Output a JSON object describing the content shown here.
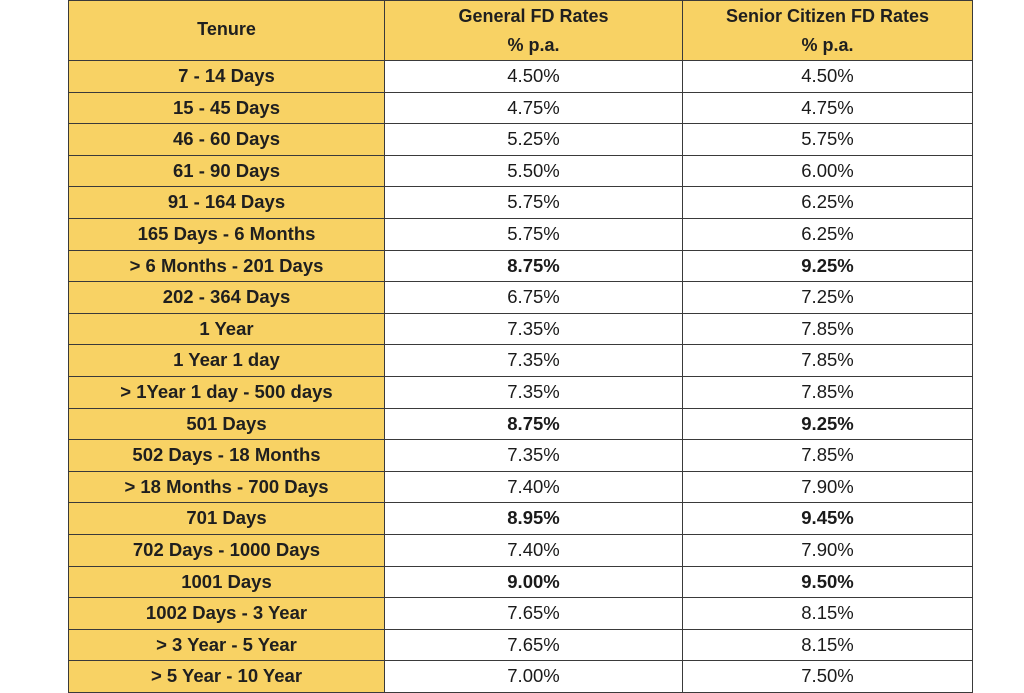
{
  "table": {
    "headers": {
      "tenure": "Tenure",
      "general_line1": "General FD Rates",
      "general_line2": "% p.a.",
      "senior_line1": "Senior Citizen FD Rates",
      "senior_line2": "% p.a."
    },
    "rows": [
      {
        "tenure": "7 - 14 Days",
        "general": "4.50%",
        "senior": "4.50%",
        "highlight": false
      },
      {
        "tenure": "15 - 45 Days",
        "general": "4.75%",
        "senior": "4.75%",
        "highlight": false
      },
      {
        "tenure": "46 - 60 Days",
        "general": "5.25%",
        "senior": "5.75%",
        "highlight": false
      },
      {
        "tenure": "61 - 90 Days",
        "general": "5.50%",
        "senior": "6.00%",
        "highlight": false
      },
      {
        "tenure": "91 - 164 Days",
        "general": "5.75%",
        "senior": "6.25%",
        "highlight": false
      },
      {
        "tenure": "165 Days - 6 Months",
        "general": "5.75%",
        "senior": "6.25%",
        "highlight": false
      },
      {
        "tenure": "> 6 Months - 201 Days",
        "general": "8.75%",
        "senior": "9.25%",
        "highlight": true
      },
      {
        "tenure": "202 - 364 Days",
        "general": "6.75%",
        "senior": "7.25%",
        "highlight": false
      },
      {
        "tenure": "1 Year",
        "general": "7.35%",
        "senior": "7.85%",
        "highlight": false
      },
      {
        "tenure": "1 Year 1 day",
        "general": "7.35%",
        "senior": "7.85%",
        "highlight": false
      },
      {
        "tenure": "> 1Year 1 day - 500 days",
        "general": "7.35%",
        "senior": "7.85%",
        "highlight": false
      },
      {
        "tenure": "501 Days",
        "general": "8.75%",
        "senior": "9.25%",
        "highlight": true
      },
      {
        "tenure": "502 Days - 18 Months",
        "general": "7.35%",
        "senior": "7.85%",
        "highlight": false
      },
      {
        "tenure": "> 18 Months - 700 Days",
        "general": "7.40%",
        "senior": "7.90%",
        "highlight": false
      },
      {
        "tenure": "701 Days",
        "general": "8.95%",
        "senior": "9.45%",
        "highlight": true
      },
      {
        "tenure": "702 Days - 1000 Days",
        "general": "7.40%",
        "senior": "7.90%",
        "highlight": false
      },
      {
        "tenure": "1001 Days",
        "general": "9.00%",
        "senior": "9.50%",
        "highlight": true
      },
      {
        "tenure": "1002 Days - 3 Year",
        "general": "7.65%",
        "senior": "8.15%",
        "highlight": false
      },
      {
        "tenure": "> 3 Year - 5 Year",
        "general": "7.65%",
        "senior": "8.15%",
        "highlight": false
      },
      {
        "tenure": "> 5 Year - 10 Year",
        "general": "7.00%",
        "senior": "7.50%",
        "highlight": false
      }
    ]
  },
  "colors": {
    "header_fill": "#f8d264",
    "tenure_fill": "#f8d264",
    "border": "#3a3a3a",
    "rate_fill": "#ffffff"
  }
}
